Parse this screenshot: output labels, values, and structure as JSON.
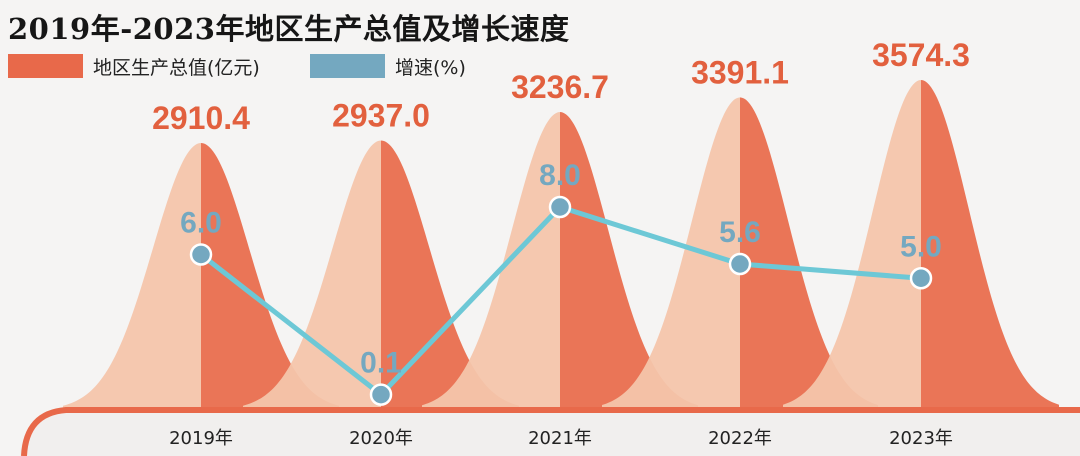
{
  "title": "2019年-2023年地区生产总值及增长速度",
  "legend": [
    {
      "label": "地区生产总值(亿元)",
      "color": "#e8694a"
    },
    {
      "label": "增速(%)",
      "color": "#74a8c0"
    }
  ],
  "colors": {
    "gdp_dark": "#e8694a",
    "gdp_light": "#f4c5ab",
    "growth_line": "#6dc8d6",
    "growth_marker": "#74a8c0",
    "growth_label": "#74a8c0",
    "gdp_label": "#e2603e"
  },
  "chart_data": {
    "type": "bar",
    "title": "2019年-2023年地区生产总值及增长速度",
    "categories": [
      "2019年",
      "2020年",
      "2021年",
      "2022年",
      "2023年"
    ],
    "series": [
      {
        "name": "地区生产总值(亿元)",
        "type": "bar",
        "values": [
          2910.4,
          2937.0,
          3236.7,
          3391.1,
          3574.3
        ],
        "labels": [
          "2910.4",
          "2937.0",
          "3236.7",
          "3391.1",
          "3574.3"
        ]
      },
      {
        "name": "增速(%)",
        "type": "line",
        "values": [
          6.0,
          0.1,
          8.0,
          5.6,
          5.0
        ],
        "labels": [
          "6.0",
          "0.1",
          "8.0",
          "5.6",
          "5.0"
        ]
      }
    ]
  }
}
